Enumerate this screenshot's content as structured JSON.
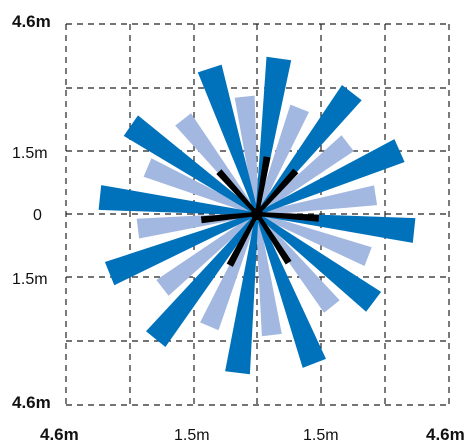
{
  "figure": {
    "y_labels": {
      "top": "4.6m",
      "upper": "1.5m",
      "center": "0",
      "lower": "1.5m",
      "bottom": "4.6m"
    },
    "x_labels": {
      "left": "4.6m",
      "left_inner": "1.5m",
      "right_inner": "1.5m",
      "right": "4.6m"
    }
  },
  "colors": {
    "dark_blade": "#0072bc",
    "light_blade": "#a3b8e0",
    "core": "#000000",
    "grid": "#222222"
  },
  "icons": [
    "rotor-core-icon"
  ]
}
